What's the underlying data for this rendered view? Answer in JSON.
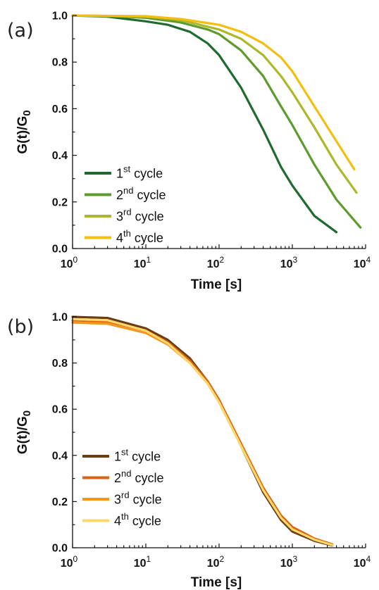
{
  "chart_data": [
    {
      "type": "line",
      "panel_label": "(a)",
      "xlabel": "Time [s]",
      "ylabel": "G(t)/G",
      "ylabel_sub": "0",
      "xscale": "log",
      "xlim": [
        1,
        10000
      ],
      "ylim": [
        0.0,
        1.0
      ],
      "xticks": [
        {
          "value": 1,
          "base": "10",
          "exp": "0"
        },
        {
          "value": 10,
          "base": "10",
          "exp": "1"
        },
        {
          "value": 100,
          "base": "10",
          "exp": "2"
        },
        {
          "value": 1000,
          "base": "10",
          "exp": "3"
        },
        {
          "value": 10000,
          "base": "10",
          "exp": "4"
        }
      ],
      "yticks": [
        {
          "value": 0.0,
          "label": "0.0"
        },
        {
          "value": 0.2,
          "label": "0.2"
        },
        {
          "value": 0.4,
          "label": "0.4"
        },
        {
          "value": 0.6,
          "label": "0.6"
        },
        {
          "value": 0.8,
          "label": "0.8"
        },
        {
          "value": 1.0,
          "label": "1.0"
        }
      ],
      "legend_position": "bottom-left",
      "grid": false,
      "series": [
        {
          "name": "1st cycle",
          "label_main": "1",
          "label_sup": "st",
          "label_rest": " cycle",
          "color": "#1e6a2f",
          "x": [
            1,
            3,
            10,
            20,
            40,
            70,
            100,
            200,
            400,
            700,
            1000,
            2000,
            4000
          ],
          "y": [
            1.0,
            0.995,
            0.975,
            0.96,
            0.93,
            0.88,
            0.83,
            0.69,
            0.51,
            0.35,
            0.27,
            0.14,
            0.07
          ]
        },
        {
          "name": "2nd cycle",
          "label_main": "2",
          "label_sup": "nd",
          "label_rest": " cycle",
          "color": "#5d9b2e",
          "x": [
            1,
            3,
            10,
            30,
            70,
            100,
            200,
            400,
            700,
            1000,
            2000,
            4000,
            8500
          ],
          "y": [
            1.0,
            0.998,
            0.99,
            0.97,
            0.94,
            0.92,
            0.85,
            0.74,
            0.61,
            0.53,
            0.36,
            0.21,
            0.09
          ]
        },
        {
          "name": "3rd cycle",
          "label_main": "3",
          "label_sup": "rd",
          "label_rest": " cycle",
          "color": "#aab82a",
          "x": [
            1,
            10,
            30,
            100,
            200,
            400,
            700,
            1000,
            2000,
            4000,
            7500
          ],
          "y": [
            1.0,
            0.995,
            0.98,
            0.94,
            0.9,
            0.83,
            0.74,
            0.67,
            0.52,
            0.36,
            0.24
          ]
        },
        {
          "name": "4th cycle",
          "label_main": "4",
          "label_sup": "th",
          "label_rest": " cycle",
          "color": "#f4be10",
          "x": [
            1,
            10,
            30,
            100,
            200,
            400,
            700,
            1000,
            2000,
            4000,
            7000
          ],
          "y": [
            1.0,
            0.997,
            0.985,
            0.96,
            0.93,
            0.88,
            0.82,
            0.76,
            0.61,
            0.46,
            0.34
          ]
        }
      ]
    },
    {
      "type": "line",
      "panel_label": "(b)",
      "xlabel": "Time [s]",
      "ylabel": "G(t)/G",
      "ylabel_sub": "0",
      "xscale": "log",
      "xlim": [
        1,
        10000
      ],
      "ylim": [
        0.0,
        1.0
      ],
      "xticks": [
        {
          "value": 1,
          "base": "10",
          "exp": "0"
        },
        {
          "value": 10,
          "base": "10",
          "exp": "1"
        },
        {
          "value": 100,
          "base": "10",
          "exp": "2"
        },
        {
          "value": 1000,
          "base": "10",
          "exp": "3"
        },
        {
          "value": 10000,
          "base": "10",
          "exp": "4"
        }
      ],
      "yticks": [
        {
          "value": 0.0,
          "label": "0.0"
        },
        {
          "value": 0.2,
          "label": "0.2"
        },
        {
          "value": 0.4,
          "label": "0.4"
        },
        {
          "value": 0.6,
          "label": "0.6"
        },
        {
          "value": 0.8,
          "label": "0.8"
        },
        {
          "value": 1.0,
          "label": "1.0"
        }
      ],
      "legend_position": "bottom-left",
      "grid": false,
      "series": [
        {
          "name": "1st cycle",
          "label_main": "1",
          "label_sup": "st",
          "label_rest": " cycle",
          "color": "#6b3d12",
          "x": [
            1,
            3,
            10,
            20,
            40,
            70,
            100,
            200,
            400,
            700,
            1000,
            2000,
            3500
          ],
          "y": [
            1.0,
            0.995,
            0.95,
            0.9,
            0.82,
            0.72,
            0.64,
            0.44,
            0.24,
            0.12,
            0.07,
            0.03,
            0.01
          ]
        },
        {
          "name": "2nd cycle",
          "label_main": "2",
          "label_sup": "nd",
          "label_rest": " cycle",
          "color": "#d9630f",
          "x": [
            1,
            3,
            10,
            20,
            40,
            70,
            100,
            200,
            400,
            700,
            1000,
            2000,
            3500
          ],
          "y": [
            0.985,
            0.98,
            0.94,
            0.89,
            0.81,
            0.72,
            0.64,
            0.45,
            0.26,
            0.14,
            0.09,
            0.04,
            0.015
          ]
        },
        {
          "name": "3rd cycle",
          "label_main": "3",
          "label_sup": "rd",
          "label_rest": " cycle",
          "color": "#f3961e",
          "x": [
            1,
            3,
            10,
            20,
            40,
            70,
            100,
            200,
            400,
            700,
            1000,
            2000,
            3500
          ],
          "y": [
            0.975,
            0.97,
            0.93,
            0.88,
            0.8,
            0.71,
            0.63,
            0.44,
            0.25,
            0.13,
            0.08,
            0.035,
            0.012
          ]
        },
        {
          "name": "4th cycle",
          "label_main": "4",
          "label_sup": "th",
          "label_rest": " cycle",
          "color": "#fbd86b",
          "x": [
            1,
            3,
            10,
            20,
            40,
            70,
            100,
            200,
            400,
            700,
            1000,
            2000,
            3500
          ],
          "y": [
            0.99,
            0.985,
            0.94,
            0.885,
            0.8,
            0.71,
            0.63,
            0.44,
            0.25,
            0.13,
            0.08,
            0.035,
            0.012
          ]
        }
      ]
    }
  ]
}
